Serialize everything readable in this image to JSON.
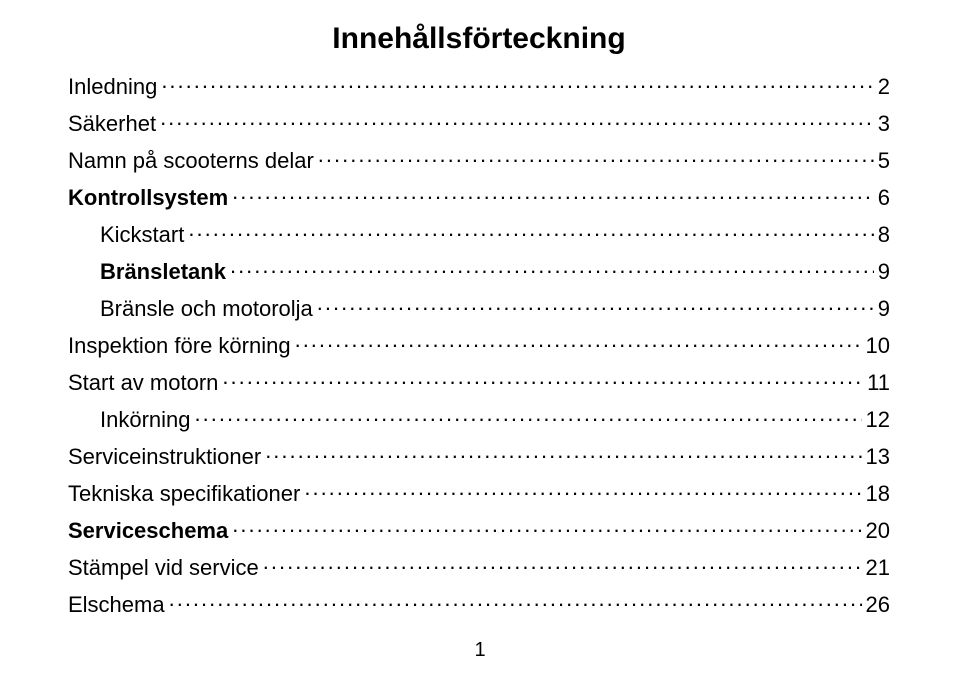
{
  "title": "Innehållsförteckning",
  "pageNumber": "1",
  "toc": [
    {
      "label": "Inledning",
      "page": "2",
      "bold": false,
      "indent": false
    },
    {
      "label": "Säkerhet",
      "page": "3",
      "bold": false,
      "indent": false
    },
    {
      "label": "Namn på scooterns delar",
      "page": "5",
      "bold": false,
      "indent": false
    },
    {
      "label": "Kontrollsystem",
      "page": "6",
      "bold": true,
      "indent": false
    },
    {
      "label": "Kickstart",
      "page": "8",
      "bold": false,
      "indent": true
    },
    {
      "label": "Bränsletank",
      "page": "9",
      "bold": true,
      "indent": true
    },
    {
      "label": "Bränsle och motorolja",
      "page": "9",
      "bold": false,
      "indent": true
    },
    {
      "label": "Inspektion före körning",
      "page": "10",
      "bold": false,
      "indent": false
    },
    {
      "label": "Start av motorn",
      "page": "11",
      "bold": false,
      "indent": false
    },
    {
      "label": "Inkörning",
      "page": "12",
      "bold": false,
      "indent": true
    },
    {
      "label": "Serviceinstruktioner",
      "page": "13",
      "bold": false,
      "indent": false
    },
    {
      "label": "Tekniska specifikationer",
      "page": "18",
      "bold": false,
      "indent": false
    },
    {
      "label": "Serviceschema",
      "page": "20",
      "bold": true,
      "indent": false
    },
    {
      "label": "Stämpel vid service",
      "page": "21",
      "bold": false,
      "indent": false
    },
    {
      "label": "Elschema",
      "page": "26",
      "bold": false,
      "indent": false
    }
  ]
}
